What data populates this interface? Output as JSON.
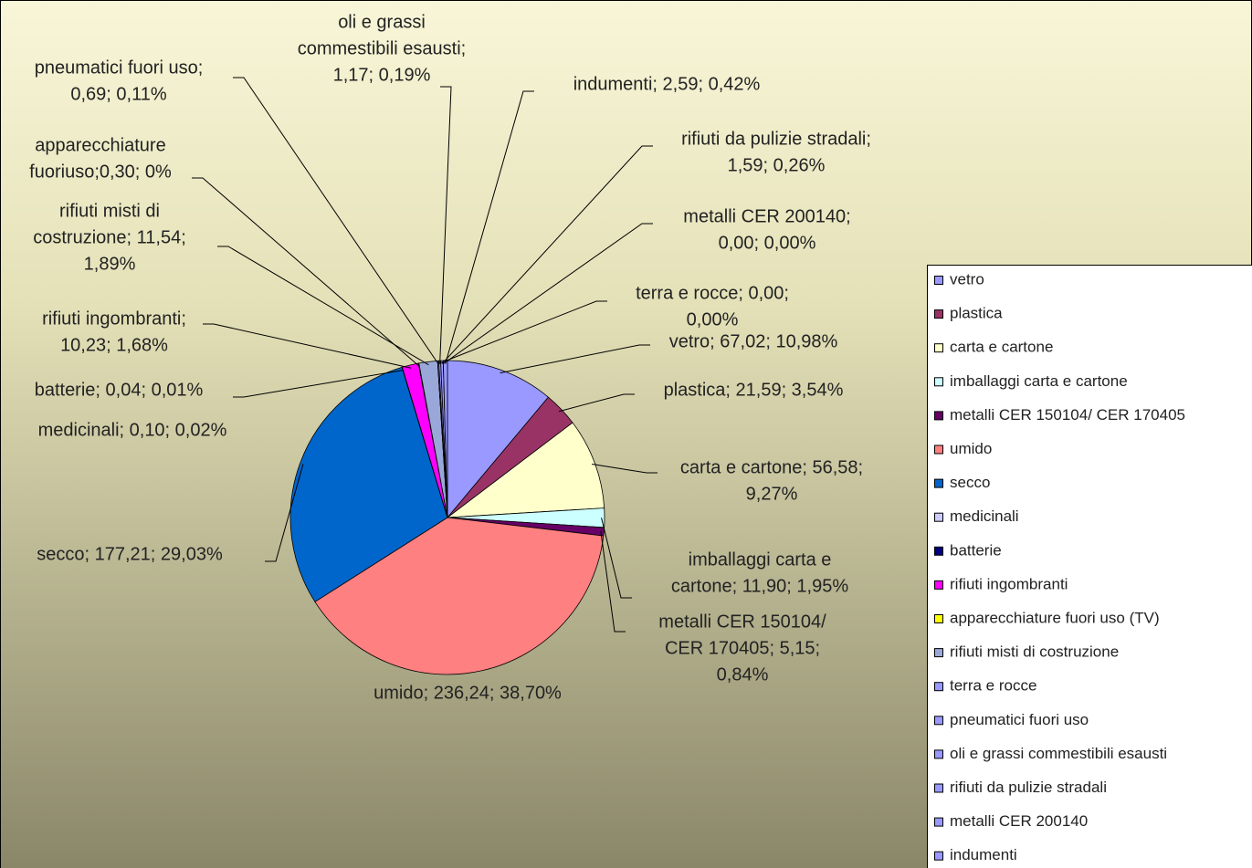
{
  "chart_data": {
    "type": "pie",
    "categories": [
      "vetro",
      "plastica",
      "carta e cartone",
      "imballaggi carta e cartone",
      "metalli CER 150104/ CER 170405",
      "umido",
      "secco",
      "medicinali",
      "batterie",
      "rifiuti ingombranti",
      "apparecchiature fuori uso (TV)",
      "rifiuti misti di costruzione",
      "terra e rocce",
      "pneumatici fuori uso",
      "oli e grassi commestibili esausti",
      "rifiuti da pulizie stradali",
      "metalli CER 200140",
      "indumenti"
    ],
    "values": [
      67.02,
      21.59,
      56.58,
      11.9,
      5.15,
      236.24,
      177.21,
      0.1,
      0.04,
      10.23,
      0.3,
      11.54,
      0.0,
      0.69,
      1.17,
      1.59,
      0.0,
      2.59
    ],
    "data_labels": [
      [
        "vetro; 67,02; 10,98%"
      ],
      [
        "plastica; 21,59; 3,54%"
      ],
      [
        "carta e cartone; 56,58;",
        "9,27%"
      ],
      [
        "imballaggi carta e",
        "cartone; 11,90; 1,95%"
      ],
      [
        "metalli CER 150104/",
        "CER 170405; 5,15;",
        "0,84%"
      ],
      [
        "umido; 236,24; 38,70%"
      ],
      [
        "secco; 177,21; 29,03%"
      ],
      [
        "medicinali; 0,10; 0,02%"
      ],
      [
        "batterie; 0,04; 0,01%"
      ],
      [
        "rifiuti ingombranti;",
        "10,23; 1,68%"
      ],
      [
        "apparecchiature",
        "fuoriuso;0,30; 0%"
      ],
      [
        "rifiuti misti di",
        "costruzione; 11,54;",
        "1,89%"
      ],
      [
        "terra e rocce; 0,00;",
        "0,00%"
      ],
      [
        "pneumatici fuori uso;",
        "0,69; 0,11%"
      ],
      [
        "oli e grassi",
        "commestibili esausti;",
        "1,17; 0,19%"
      ],
      [
        "rifiuti da pulizie stradali;",
        "1,59; 0,26%"
      ],
      [
        "metalli CER 200140;",
        "0,00; 0,00%"
      ],
      [
        "indumenti; 2,59; 0,42%"
      ]
    ],
    "colors": [
      "#9999ff",
      "#993366",
      "#ffffcc",
      "#ccffff",
      "#660066",
      "#ff8080",
      "#0066cc",
      "#ccccff",
      "#000080",
      "#ff00ff",
      "#ffff00",
      "#99a8d8",
      "#9999ff",
      "#9999ff",
      "#9999ff",
      "#9999ff",
      "#9999ff",
      "#9999ff"
    ],
    "legend": "right"
  }
}
